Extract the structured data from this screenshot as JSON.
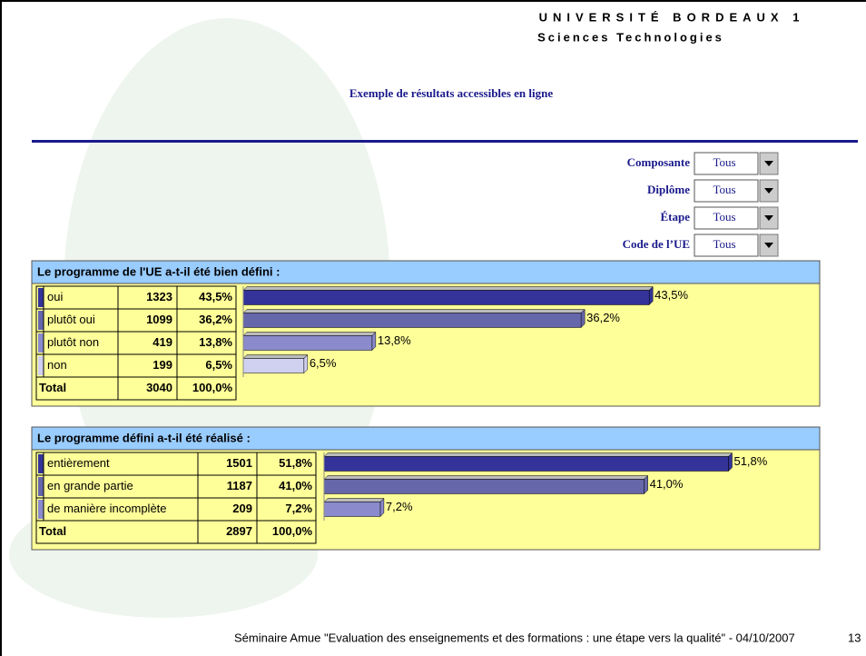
{
  "header": {
    "university": "UNIVERSITÉ BORDEAUX 1",
    "subtitle": "Sciences Technologies",
    "title": "Exemple de résultats accessibles en ligne"
  },
  "filters": [
    {
      "label": "Composante",
      "value": "Tous"
    },
    {
      "label": "Diplôme",
      "value": "Tous"
    },
    {
      "label": "Étape",
      "value": "Tous"
    },
    {
      "label": "Code de l’UE",
      "value": "Tous"
    }
  ],
  "chart_data": [
    {
      "type": "bar",
      "title": "Le programme de l'UE a-t-il été bien défini :",
      "categories": [
        "oui",
        "plutôt oui",
        "plutôt non",
        "non"
      ],
      "counts": [
        1323,
        1099,
        419,
        199
      ],
      "values": [
        43.5,
        36.2,
        13.8,
        6.5
      ],
      "value_labels": [
        "43,5%",
        "36,2%",
        "13,8%",
        "6,5%"
      ],
      "colors": [
        "#333399",
        "#6666aa",
        "#8a8acc",
        "#d0d0f0"
      ],
      "total_label": "Total",
      "total_count": 3040,
      "total_percent": "100,0%"
    },
    {
      "type": "bar",
      "title": "Le programme défini a-t-il été réalisé :",
      "categories": [
        "entièrement",
        "en grande partie",
        "de manière incomplète"
      ],
      "counts": [
        1501,
        1187,
        209
      ],
      "values": [
        51.8,
        41.0,
        7.2
      ],
      "value_labels": [
        "51,8%",
        "41,0%",
        "7,2%"
      ],
      "colors": [
        "#333399",
        "#6666aa",
        "#8a8acc"
      ],
      "total_label": "Total",
      "total_count": 2897,
      "total_percent": "100,0%"
    }
  ],
  "footer": {
    "text": "Séminaire Amue   \"Evaluation des enseignements et des formations : une étape vers la qualité\" - 04/10/2007",
    "page": "13"
  }
}
